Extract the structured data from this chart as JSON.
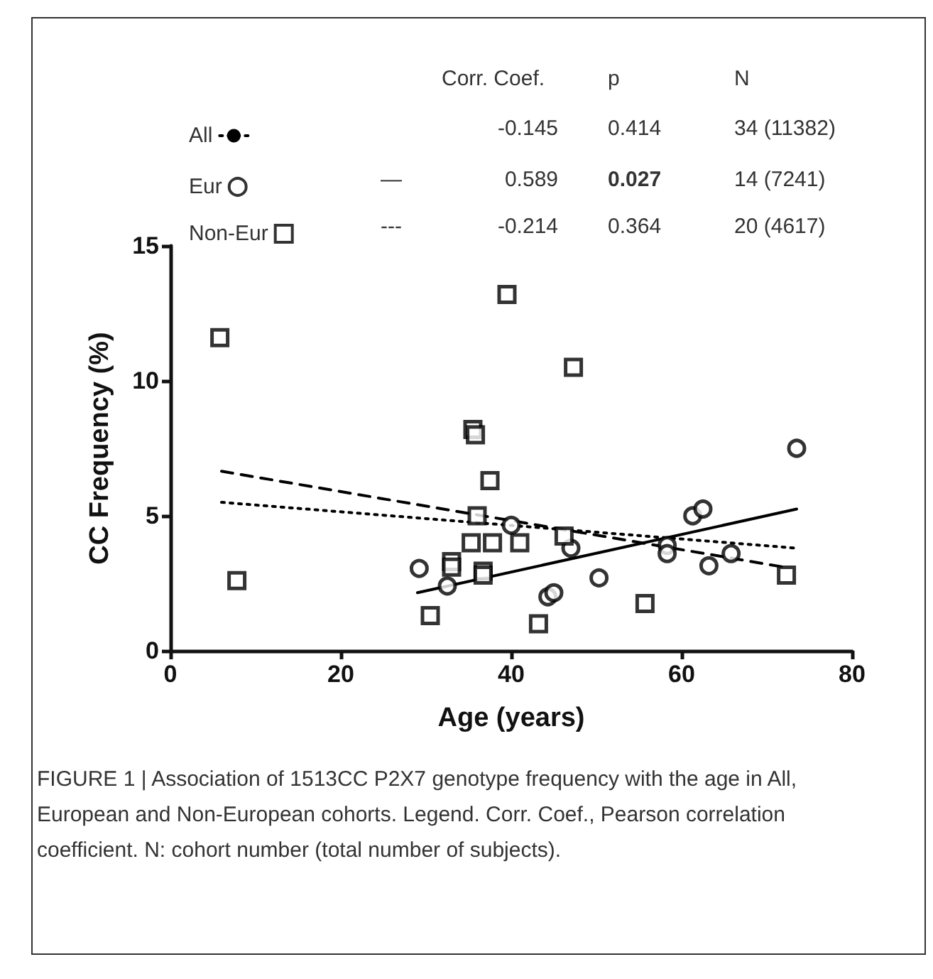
{
  "chart_data": {
    "type": "scatter",
    "xlabel": "Age (years)",
    "ylabel": "CC Frequency (%)",
    "xlim": [
      0,
      80
    ],
    "xticks": [
      0,
      20,
      40,
      60,
      80
    ],
    "ylim": [
      0,
      15
    ],
    "yticks": [
      0,
      5,
      10,
      15
    ],
    "grid": false,
    "legend": "top",
    "annotations": [
      "Corr. Coef.",
      "p",
      "N",
      "-0.145",
      "0.414",
      "34 (11382)",
      "—",
      "0.589",
      "0.027",
      "14 (7241)",
      "---",
      "-0.214",
      "0.364",
      "20 (4617)",
      "FIGURE 1 | Association of 1513CC P2X7 genotype frequency with the age in All, European and Non-European cohorts. Legend. Corr. Coef., Pearson correlation coefficient. N: cohort number (total number of subjects)."
    ],
    "series": [
      {
        "name": "All",
        "type": "line",
        "color": "#000000",
        "line_style": "dotted",
        "x": [
          6,
          73.5
        ],
        "values": [
          5.5,
          3.8
        ]
      },
      {
        "type": "line",
        "color": "#000000",
        "line_style": "solid",
        "x": [
          29,
          73.5
        ],
        "values": [
          2.15,
          5.25
        ]
      },
      {
        "type": "line",
        "color": "#000000",
        "line_style": "dashed",
        "x": [
          6,
          72
        ],
        "values": [
          6.65,
          3.1
        ]
      },
      {
        "name": "Eur",
        "color": "#000000",
        "marker": "circle",
        "x": [
          29.2,
          32.5,
          40,
          47,
          50.3,
          44.3,
          45,
          58.3,
          58.3,
          61.3,
          62.5,
          63.2,
          65.8,
          73.5
        ],
        "values": [
          3.05,
          2.4,
          4.65,
          3.8,
          2.7,
          2.0,
          2.15,
          3.9,
          3.6,
          5.0,
          5.25,
          3.15,
          3.6,
          7.5
        ]
      },
      {
        "name": "Non-Eur",
        "color": "#000000",
        "marker": "square",
        "x": [
          5.8,
          7.8,
          35.5,
          35.8,
          37.5,
          36,
          35.3,
          37.8,
          33,
          33,
          36.7,
          36.7,
          30.5,
          39.5,
          47.3,
          41,
          46.2,
          43.2,
          55.7,
          72.3
        ],
        "values": [
          11.6,
          2.6,
          8.2,
          8.0,
          6.3,
          5.0,
          4.0,
          4.0,
          3.3,
          3.1,
          2.95,
          2.8,
          1.3,
          13.2,
          10.5,
          4.0,
          4.25,
          1.0,
          1.75,
          2.8
        ]
      }
    ]
  }
}
